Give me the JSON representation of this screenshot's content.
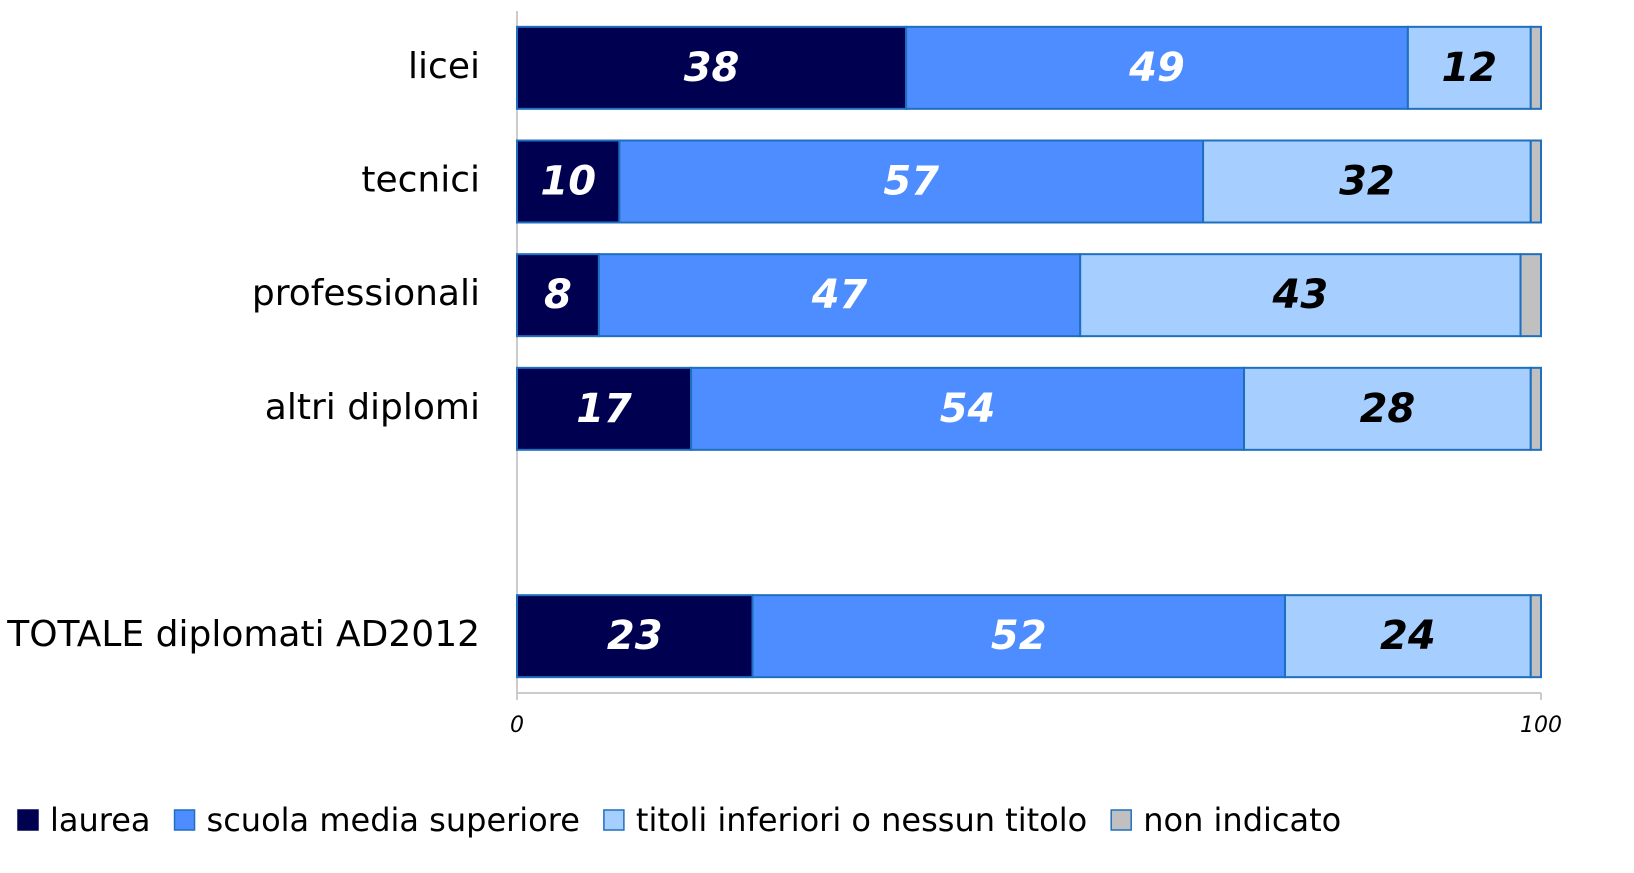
{
  "chart_data": {
    "type": "stacked_bar_horizontal",
    "categories": [
      "licei",
      "tecnici",
      "professionali",
      "altri diplomi",
      null,
      "TOTALE diplomati AD2012"
    ],
    "series": [
      {
        "name": "laurea",
        "color": "#000050",
        "label_color": "#ffffff",
        "show_labels": true,
        "values": [
          38,
          10,
          8,
          17,
          null,
          23
        ]
      },
      {
        "name": "scuola media superiore",
        "color": "#4d8dff",
        "label_color": "#ffffff",
        "show_labels": true,
        "values": [
          49,
          57,
          47,
          54,
          null,
          52
        ]
      },
      {
        "name": "titoli inferiori o nessun titolo",
        "color": "#a6cfff",
        "label_color": "#000000",
        "show_labels": true,
        "values": [
          12,
          32,
          43,
          28,
          null,
          24
        ]
      },
      {
        "name": "non indicato",
        "color": "#c0c0c0",
        "label_color": "#000000",
        "show_labels": false,
        "values": [
          1,
          1,
          2,
          1,
          null,
          1
        ]
      }
    ],
    "xlim": [
      0,
      100
    ],
    "xticks": [
      0,
      100
    ],
    "legend": "bottom"
  }
}
